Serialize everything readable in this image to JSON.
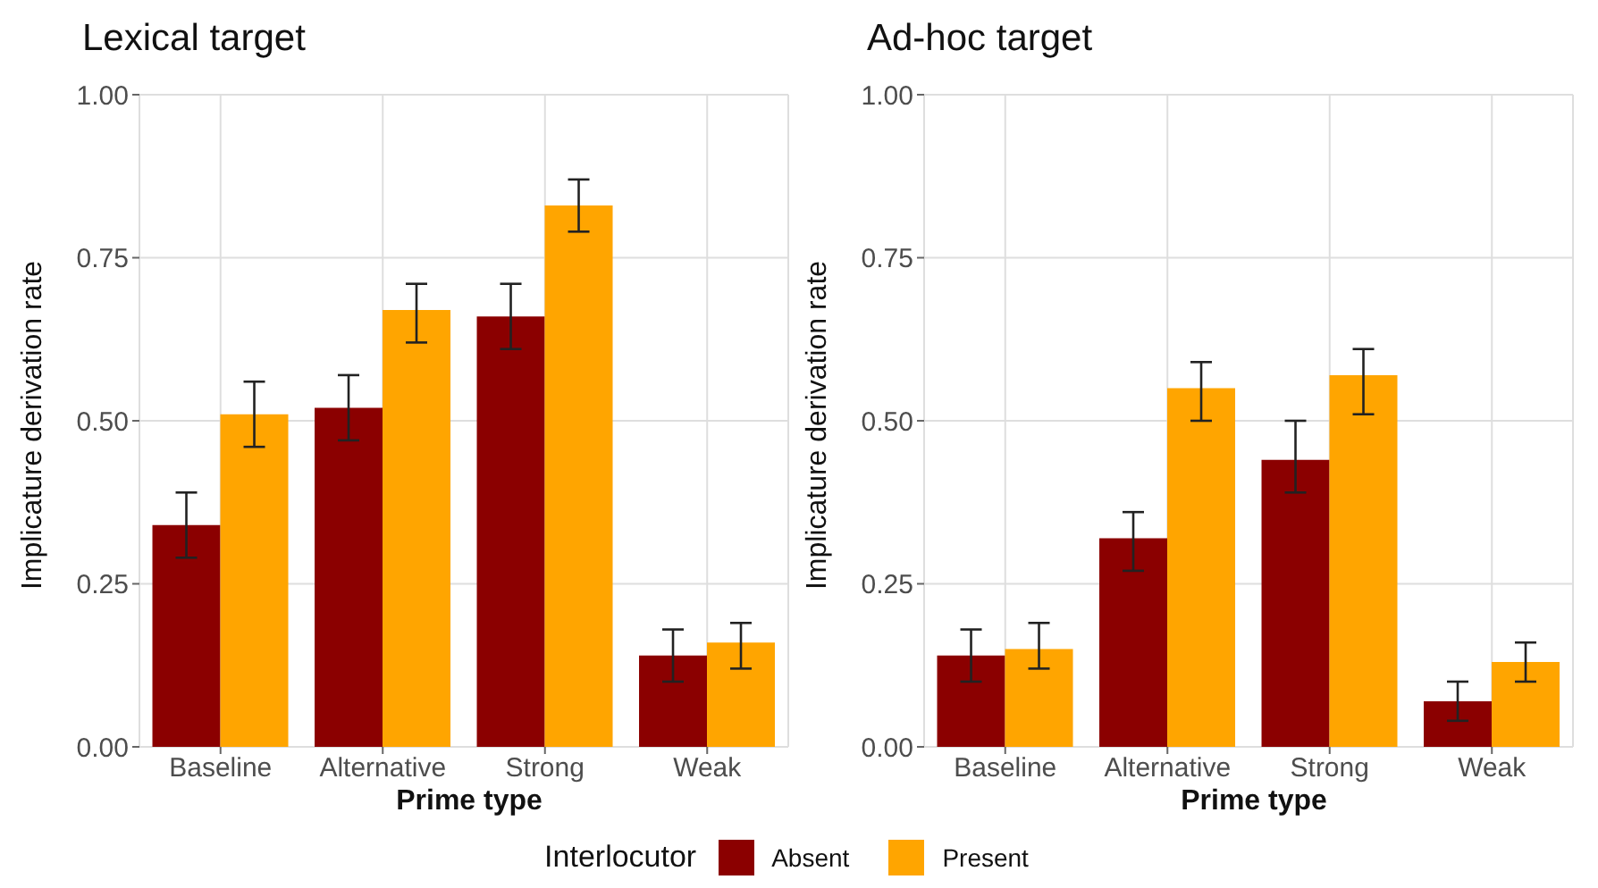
{
  "chart_data": [
    {
      "type": "bar",
      "title": "Lexical target",
      "legend": "bottom",
      "legend_title": "Interlocutor",
      "xlabel": "Prime type",
      "ylabel": "Implicature derivation rate",
      "categories": [
        "Baseline",
        "Alternative",
        "Strong",
        "Weak"
      ],
      "series": [
        {
          "name": "Absent",
          "color": "#8b0000",
          "values": [
            0.34,
            0.52,
            0.66,
            0.14
          ],
          "errors": [
            [
              0.29,
              0.39
            ],
            [
              0.47,
              0.57
            ],
            [
              0.61,
              0.71
            ],
            [
              0.1,
              0.18
            ]
          ]
        },
        {
          "name": "Present",
          "color": "#ffa500",
          "values": [
            0.51,
            0.67,
            0.83,
            0.16
          ],
          "errors": [
            [
              0.46,
              0.56
            ],
            [
              0.62,
              0.71
            ],
            [
              0.79,
              0.87
            ],
            [
              0.12,
              0.19
            ]
          ]
        }
      ],
      "ylim": [
        0,
        1
      ],
      "yticks": [
        {
          "value": 0,
          "label": "0.00"
        },
        {
          "value": 0.25,
          "label": "0.25"
        },
        {
          "value": 0.5,
          "label": "0.50"
        },
        {
          "value": 0.75,
          "label": "0.75"
        },
        {
          "value": 1,
          "label": "1.00"
        }
      ],
      "grid": true
    },
    {
      "type": "bar",
      "title": "Ad-hoc target",
      "xlabel": "Prime type",
      "ylabel": "Implicature derivation rate",
      "categories": [
        "Baseline",
        "Alternative",
        "Strong",
        "Weak"
      ],
      "series": [
        {
          "color": "#8b0000",
          "values": [
            0.14,
            0.32,
            0.44,
            0.07
          ],
          "errors": [
            [
              0.1,
              0.18
            ],
            [
              0.27,
              0.36
            ],
            [
              0.39,
              0.5
            ],
            [
              0.04,
              0.1
            ]
          ]
        },
        {
          "color": "#ffa500",
          "values": [
            0.15,
            0.55,
            0.57,
            0.13
          ],
          "errors": [
            [
              0.12,
              0.19
            ],
            [
              0.5,
              0.59
            ],
            [
              0.51,
              0.61
            ],
            [
              0.1,
              0.16
            ]
          ]
        }
      ],
      "ylim": [
        0,
        1
      ],
      "yticks": [
        {
          "value": 0,
          "label": "0.00"
        },
        {
          "value": 0.25,
          "label": "0.25"
        },
        {
          "value": 0.5,
          "label": "0.50"
        },
        {
          "value": 0.75,
          "label": "0.75"
        },
        {
          "value": 1,
          "label": "1.00"
        }
      ],
      "grid": true
    }
  ]
}
